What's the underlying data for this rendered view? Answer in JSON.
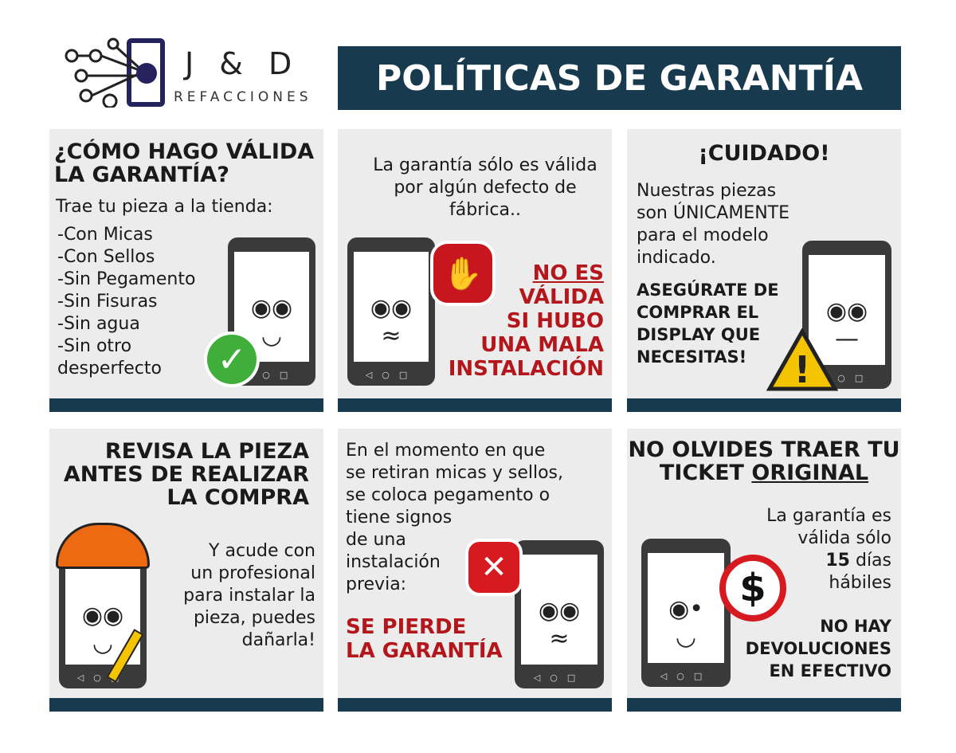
{
  "logo": {
    "name": "J & D",
    "subtitle": "REFACCIONES"
  },
  "title": "POLÍTICAS DE GARANTÍA",
  "panels": [
    {
      "heading": "¿CÓMO HAGO VÁLIDA LA GARANTÍA?",
      "intro": "Trae tu pieza a la tienda:",
      "items": [
        "-Con Micas",
        "-Con Sellos",
        "-Sin Pegamento",
        "-Sin Fisuras",
        "-Sin agua",
        "-Sin otro",
        "desperfecto"
      ]
    },
    {
      "text": "La garantía sólo es válida por algún defecto de fábrica..",
      "warning_lines": [
        "NO ES",
        "VÁLIDA",
        "SI HUBO",
        "UNA MALA",
        "INSTALACIÓN"
      ]
    },
    {
      "heading": "¡CUIDADO!",
      "text": "Nuestras piezas son ÚNICAMENTE para el modelo indicado.",
      "bold_lines": [
        "ASEGÚRATE DE",
        "COMPRAR EL",
        "DISPLAY QUE",
        "NECESITAS!"
      ]
    },
    {
      "heading_lines": [
        "REVISA LA PIEZA",
        "ANTES DE REALIZAR",
        "LA COMPRA"
      ],
      "text_lines": [
        "Y acude con",
        "un profesional",
        "para instalar la",
        "pieza, puedes",
        "dañarla!"
      ]
    },
    {
      "text_lines": [
        "En el momento en que",
        "se retiran micas y sellos,",
        "se coloca pegamento o",
        "tiene signos",
        "de una",
        "instalación",
        "previa:"
      ],
      "warning_lines": [
        "SE PIERDE",
        "LA GARANTÍA"
      ]
    },
    {
      "heading_line1": "NO OLVIDES TRAER TU",
      "heading_line2_prefix": "TICKET ",
      "heading_line2_underlined": "ORIGINAL",
      "text_lines": [
        "La garantía es",
        "válida sólo"
      ],
      "days": "15",
      "days_suffix": " días",
      "text_last": "hábiles",
      "bold_lines": [
        "NO HAY",
        "DEVOLUCIONES",
        "EN EFECTIVO"
      ]
    }
  ],
  "colors": {
    "navy": "#173a4f",
    "panel": "#ececec",
    "red": "#b3161b",
    "green": "#3fae3a",
    "yellow": "#f5c400"
  }
}
